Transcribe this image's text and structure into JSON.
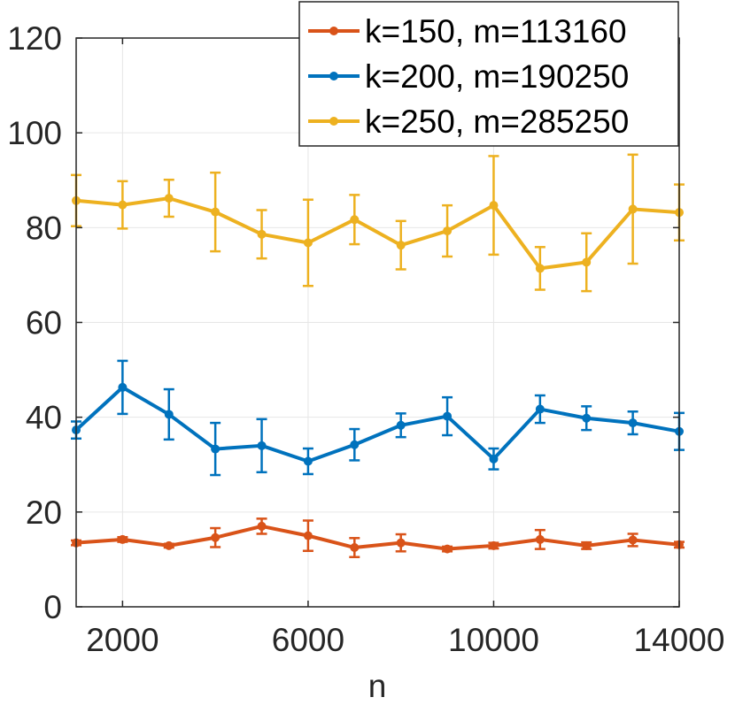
{
  "chart_data": {
    "type": "line",
    "title": "",
    "xlabel": "n",
    "ylabel": "",
    "xlim": [
      1000,
      14000
    ],
    "ylim": [
      0,
      120
    ],
    "xticks": [
      2000,
      6000,
      10000,
      14000
    ],
    "yticks": [
      0,
      20,
      40,
      60,
      80,
      100,
      120
    ],
    "xtick_labels": [
      "2000",
      "6000",
      "10000",
      "14000"
    ],
    "ytick_labels": [
      "0",
      "20",
      "40",
      "60",
      "80",
      "100",
      "120"
    ],
    "grid": true,
    "legend_position": "top-right",
    "x": [
      1000,
      2000,
      3000,
      4000,
      5000,
      6000,
      7000,
      8000,
      9000,
      10000,
      11000,
      12000,
      13000,
      14000
    ],
    "series": [
      {
        "name": "k=150, m=113160",
        "color": "#D95319",
        "values": [
          13.5,
          14.2,
          12.9,
          14.6,
          17.0,
          15.0,
          12.5,
          13.5,
          12.2,
          12.9,
          14.2,
          12.9,
          14.1,
          13.1
        ],
        "err_low": [
          0.5,
          0.5,
          0.4,
          2.0,
          1.6,
          3.2,
          2.0,
          1.8,
          0.5,
          0.6,
          2.0,
          0.7,
          1.3,
          0.6
        ],
        "err_high": [
          0.5,
          0.5,
          0.4,
          2.0,
          1.6,
          3.2,
          2.0,
          1.8,
          0.5,
          0.6,
          2.0,
          0.7,
          1.3,
          0.6
        ]
      },
      {
        "name": "k=200, m=190250",
        "color": "#0072BD",
        "values": [
          37.3,
          46.3,
          40.6,
          33.3,
          34.0,
          30.7,
          34.2,
          38.3,
          40.2,
          31.2,
          41.7,
          39.8,
          38.8,
          37.0
        ],
        "err_low": [
          1.8,
          5.6,
          5.3,
          5.5,
          5.6,
          2.7,
          3.3,
          2.5,
          4.0,
          2.2,
          2.9,
          2.5,
          2.4,
          3.9
        ],
        "err_high": [
          1.8,
          5.6,
          5.3,
          5.5,
          5.6,
          2.7,
          3.3,
          2.5,
          4.0,
          2.2,
          2.9,
          2.5,
          2.4,
          3.9
        ]
      },
      {
        "name": "k=250, m=285250",
        "color": "#EDB120",
        "values": [
          85.7,
          84.8,
          86.2,
          83.3,
          78.6,
          76.8,
          81.7,
          76.3,
          79.3,
          84.7,
          71.4,
          72.7,
          83.9,
          83.2
        ],
        "err_low": [
          5.4,
          5.0,
          3.9,
          8.3,
          5.1,
          9.1,
          5.2,
          5.1,
          5.4,
          10.4,
          4.5,
          6.1,
          11.5,
          5.9
        ],
        "err_high": [
          5.4,
          5.0,
          3.9,
          8.3,
          5.1,
          9.1,
          5.2,
          5.1,
          5.4,
          10.4,
          4.5,
          6.1,
          11.5,
          5.9
        ]
      }
    ]
  }
}
